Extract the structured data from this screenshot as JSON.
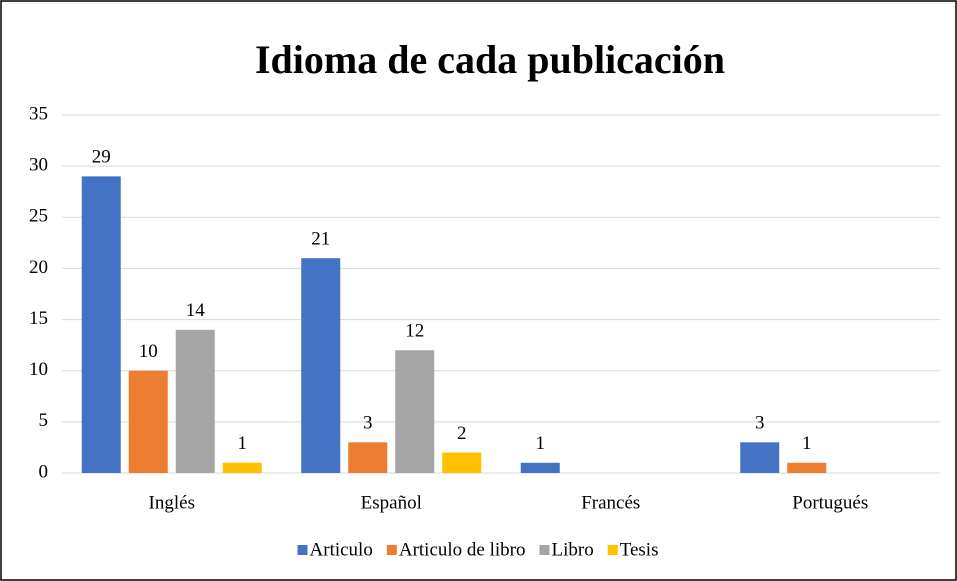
{
  "chart_data": {
    "type": "bar",
    "title": "Idioma de cada publicación",
    "categories": [
      "Inglés",
      "Español",
      "Francés",
      "Portugués"
    ],
    "series": [
      {
        "name": "Articulo",
        "color": "#4472c4",
        "values": [
          29,
          21,
          1,
          3
        ]
      },
      {
        "name": "Articulo de libro",
        "color": "#ed7d31",
        "values": [
          10,
          3,
          null,
          1
        ]
      },
      {
        "name": "Libro",
        "color": "#a5a5a5",
        "values": [
          14,
          12,
          null,
          null
        ]
      },
      {
        "name": "Tesis",
        "color": "#ffc000",
        "values": [
          1,
          2,
          null,
          null
        ]
      }
    ],
    "ylim": [
      0,
      35
    ],
    "yticks": [
      0,
      5,
      10,
      15,
      20,
      25,
      30,
      35
    ],
    "grid": true,
    "legend": "bottom"
  }
}
